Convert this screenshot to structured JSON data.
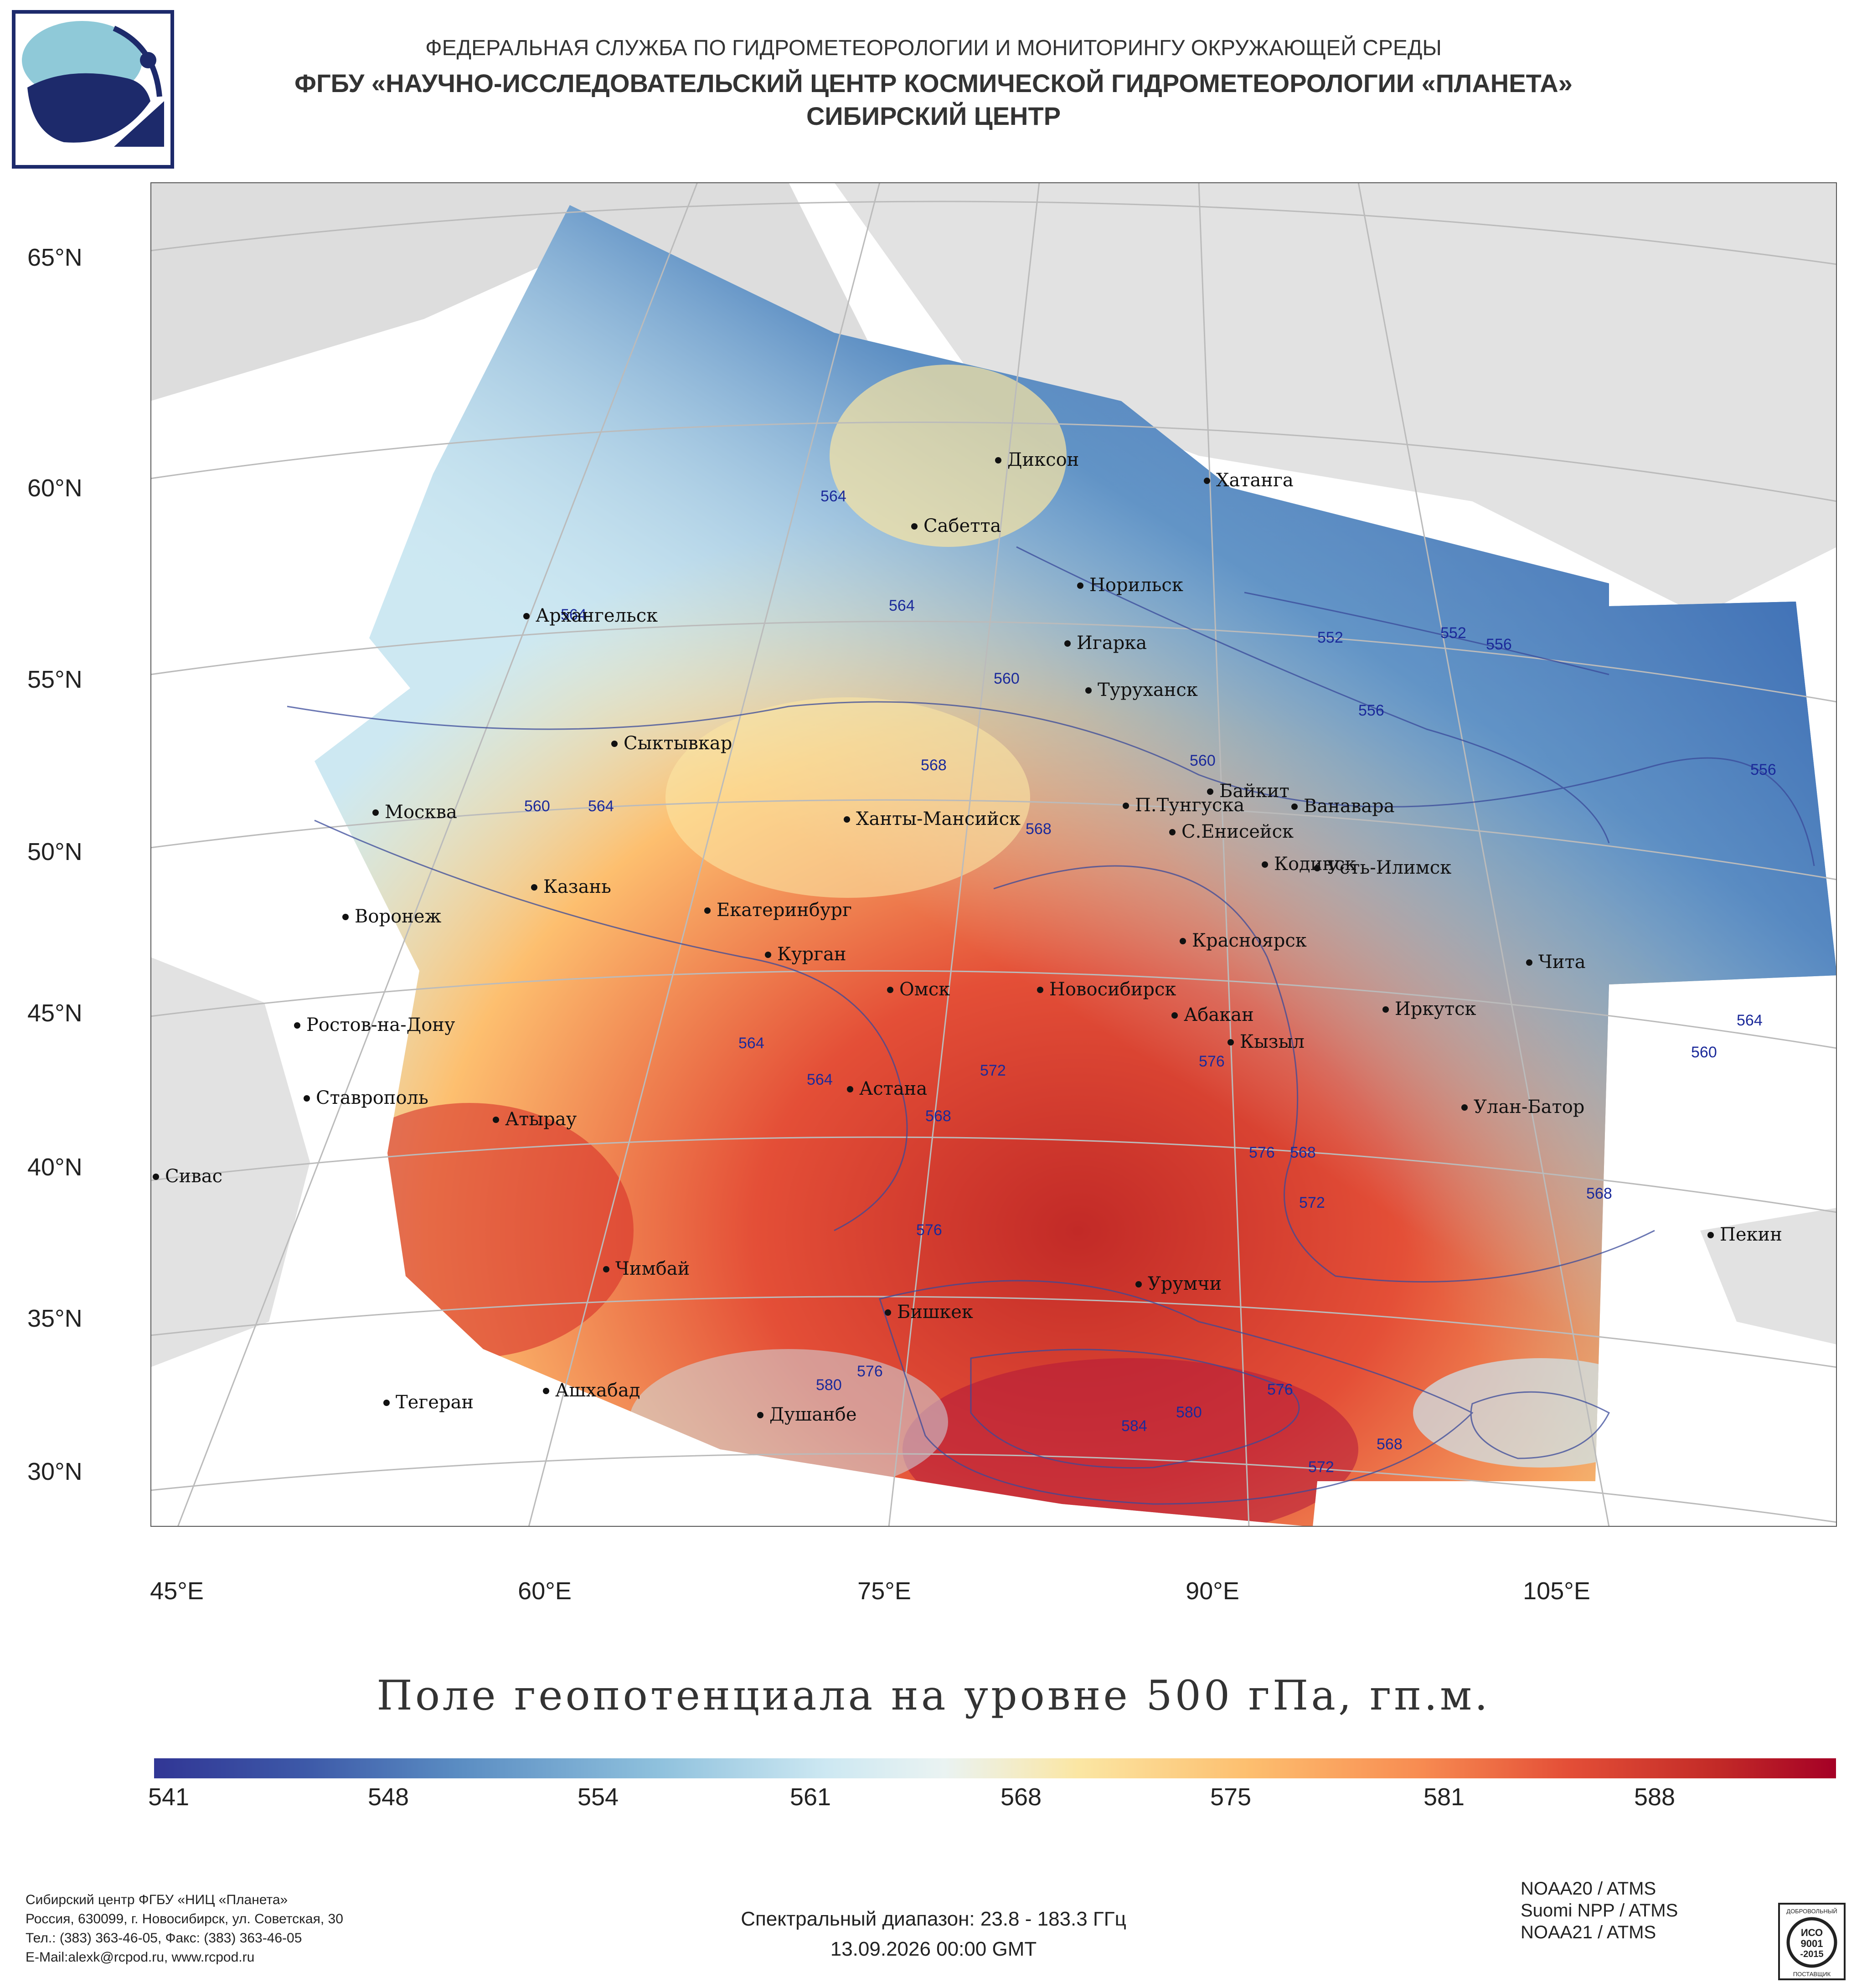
{
  "header": {
    "line1": "ФЕДЕРАЛЬНАЯ СЛУЖБА ПО ГИДРОМЕТЕОРОЛОГИИ И МОНИТОРИНГУ ОКРУЖАЮЩЕЙ СРЕДЫ",
    "line2": "ФГБУ «НАУЧНО-ИССЛЕДОВАТЕЛЬСКИЙ ЦЕНТР КОСМИЧЕСКОЙ ГИДРОМЕТЕОРОЛОГИИ «ПЛАНЕТА»",
    "line3": "СИБИРСКИЙ ЦЕНТР",
    "logo_icon": "planeta-logo-icon"
  },
  "map": {
    "lat_labels": [
      "65°N",
      "60°N",
      "55°N",
      "50°N",
      "45°N",
      "40°N",
      "35°N",
      "30°N"
    ],
    "lon_labels": [
      "45°E",
      "60°E",
      "75°E",
      "90°E",
      "105°E"
    ],
    "cities": [
      {
        "name": "Диксон"
      },
      {
        "name": "Хатанга"
      },
      {
        "name": "Сабетта"
      },
      {
        "name": "Норильск"
      },
      {
        "name": "Архангельск"
      },
      {
        "name": "Игарка"
      },
      {
        "name": "Туруханск"
      },
      {
        "name": "Сыктывкар"
      },
      {
        "name": "Байкит"
      },
      {
        "name": "Москва"
      },
      {
        "name": "Ханты-Мансийск"
      },
      {
        "name": "П.Тунгуска"
      },
      {
        "name": "Ванавара"
      },
      {
        "name": "С.Енисейск"
      },
      {
        "name": "Казань"
      },
      {
        "name": "Кодинск"
      },
      {
        "name": "Усть-Илимск"
      },
      {
        "name": "Воронеж"
      },
      {
        "name": "Екатеринбург"
      },
      {
        "name": "Красноярск"
      },
      {
        "name": "Курган"
      },
      {
        "name": "Чита"
      },
      {
        "name": "Омск"
      },
      {
        "name": "Новосибирск"
      },
      {
        "name": "Иркутск"
      },
      {
        "name": "Ростов-на-Дону"
      },
      {
        "name": "Абакан"
      },
      {
        "name": "Кызыл"
      },
      {
        "name": "Астана"
      },
      {
        "name": "Ставрополь"
      },
      {
        "name": "Улан-Батор"
      },
      {
        "name": "Атырау"
      },
      {
        "name": "Сивас"
      },
      {
        "name": "Пекин"
      },
      {
        "name": "Чимбай"
      },
      {
        "name": "Урумчи"
      },
      {
        "name": "Бишкек"
      },
      {
        "name": "Ашхабад"
      },
      {
        "name": "Тегеран"
      },
      {
        "name": "Душанбе"
      }
    ],
    "contour_labels": [
      "552",
      "552",
      "556",
      "556",
      "556",
      "560",
      "560",
      "560",
      "560",
      "564",
      "564",
      "564",
      "564",
      "564",
      "564",
      "564",
      "568",
      "568",
      "568",
      "568",
      "568",
      "568",
      "572",
      "572",
      "572",
      "576",
      "576",
      "576",
      "576",
      "576",
      "580",
      "580",
      "584"
    ]
  },
  "legend": {
    "title": "Поле геопотенциала на уровне 500 гПа, гп.м.",
    "ticks": [
      "541",
      "548",
      "554",
      "561",
      "568",
      "575",
      "581",
      "588"
    ],
    "colors": [
      "#313695",
      "#3d59a8",
      "#5a8cc2",
      "#8fc1dd",
      "#cde8f2",
      "#eaf3f2",
      "#fbe6a3",
      "#fdbf6f",
      "#f88d52",
      "#e44f37",
      "#c22a27",
      "#a50026"
    ]
  },
  "footer": {
    "org_line1": "Сибирский центр ФГБУ «НИЦ «Планета»",
    "org_line2": "Россия, 630099, г. Новосибирск, ул. Советская, 30",
    "org_line3": "Тел.: (383) 363-46-05, Факс: (383) 363-46-05",
    "org_line4": "E-Mail:alexk@rcpod.ru, www.rcpod.ru",
    "spectral": "Спектральный диапазон: 23.8 - 183.3 ГГц",
    "datetime": "13.09.2026 00:00 GMT",
    "instruments": [
      "NOAA20 / ATMS",
      "Suomi NPP / ATMS",
      "NOAA21 / ATMS"
    ],
    "iso_top": "ДОБРОВОЛЬНЫЙ",
    "iso_mid1": "ИСО",
    "iso_mid2": "9001",
    "iso_mid3": "-2015",
    "iso_bottom": "ПОСТАВЩИК"
  }
}
